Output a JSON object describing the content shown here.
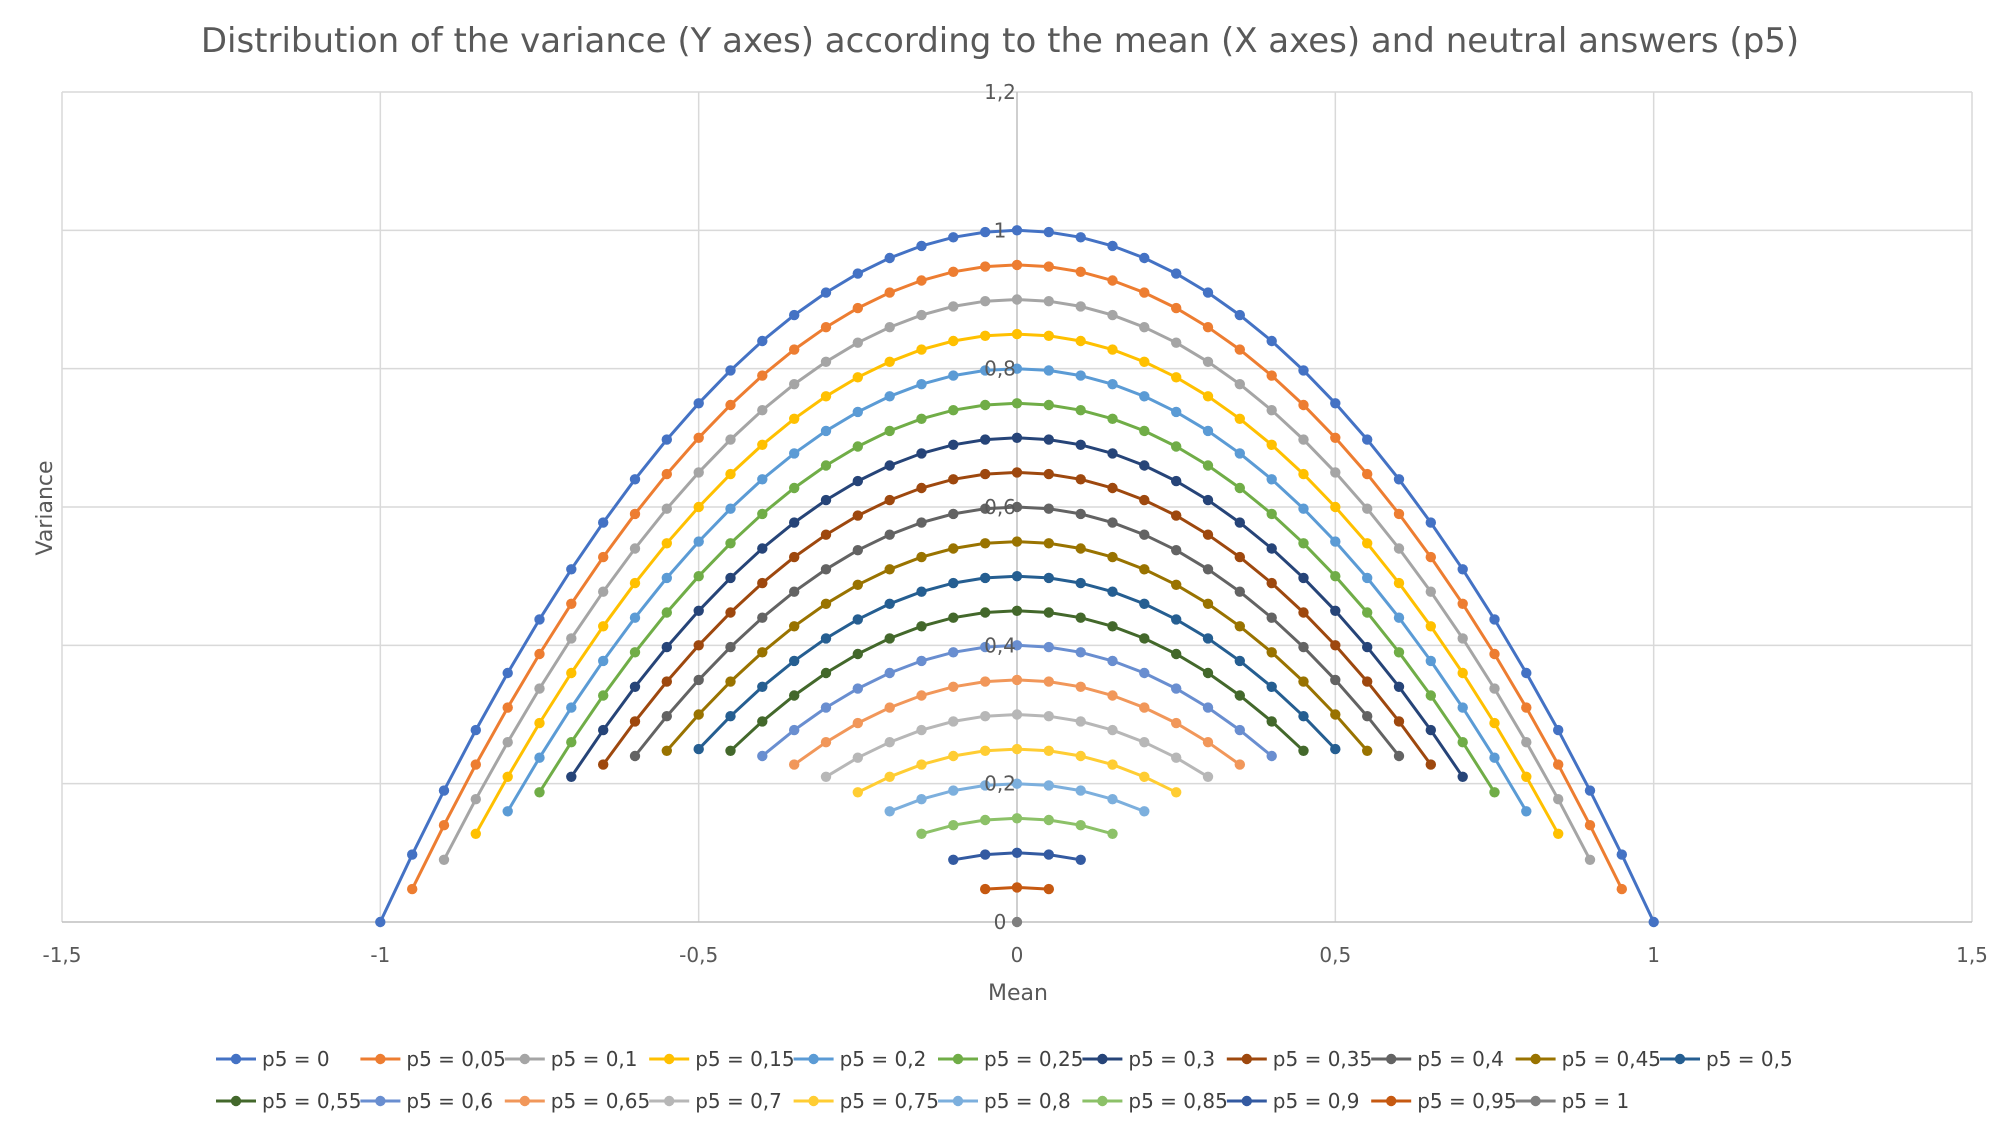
{
  "chart_data": {
    "type": "scatter",
    "title": "Distribution of the variance (Y axes) according to the mean (X axes) and neutral answers (p5)",
    "xlabel": "Mean",
    "ylabel": "Variance",
    "xlim": [
      -1.5,
      1.5
    ],
    "ylim": [
      0,
      1.2
    ],
    "x_ticks": [
      "-1,5",
      "-1",
      "-0,5",
      "0",
      "0,5",
      "1",
      "1,5"
    ],
    "y_ticks": [
      "0",
      "0,2",
      "0,4",
      "0,6",
      "0,8",
      "1",
      "1,2"
    ],
    "grid": true,
    "legend_position": "bottom",
    "mean_step": 0.05,
    "formula": "variance = (1 - p5) - mean^2, for |mean| <= 1 - p5",
    "series": [
      {
        "name": "p5 = 0",
        "p5": 0,
        "color": "#4472C4"
      },
      {
        "name": "p5 = 0,05",
        "p5": 0.05,
        "color": "#ED7D31"
      },
      {
        "name": "p5 = 0,1",
        "p5": 0.1,
        "color": "#A5A5A5"
      },
      {
        "name": "p5 = 0,15",
        "p5": 0.15,
        "color": "#FFC000"
      },
      {
        "name": "p5 = 0,2",
        "p5": 0.2,
        "color": "#5B9BD5"
      },
      {
        "name": "p5 = 0,25",
        "p5": 0.25,
        "color": "#70AD47"
      },
      {
        "name": "p5 = 0,3",
        "p5": 0.3,
        "color": "#264478"
      },
      {
        "name": "p5 = 0,35",
        "p5": 0.35,
        "color": "#9E480E"
      },
      {
        "name": "p5 = 0,4",
        "p5": 0.4,
        "color": "#636363"
      },
      {
        "name": "p5 = 0,45",
        "p5": 0.45,
        "color": "#997300"
      },
      {
        "name": "p5 = 0,5",
        "p5": 0.5,
        "color": "#255E91"
      },
      {
        "name": "p5 = 0,55",
        "p5": 0.55,
        "color": "#43682B"
      },
      {
        "name": "p5 = 0,6",
        "p5": 0.6,
        "color": "#698ED0"
      },
      {
        "name": "p5 = 0,65",
        "p5": 0.65,
        "color": "#F1975A"
      },
      {
        "name": "p5 = 0,7",
        "p5": 0.7,
        "color": "#B7B7B7"
      },
      {
        "name": "p5 = 0,75",
        "p5": 0.75,
        "color": "#FFCD33"
      },
      {
        "name": "p5 = 0,8",
        "p5": 0.8,
        "color": "#7CAFDD"
      },
      {
        "name": "p5 = 0,85",
        "p5": 0.85,
        "color": "#8CC168"
      },
      {
        "name": "p5 = 0,9",
        "p5": 0.9,
        "color": "#335AA1"
      },
      {
        "name": "p5 = 0,95",
        "p5": 0.95,
        "color": "#C65911"
      },
      {
        "name": "p5 = 1",
        "p5": 1.0,
        "color": "#7F7F7F"
      }
    ]
  }
}
